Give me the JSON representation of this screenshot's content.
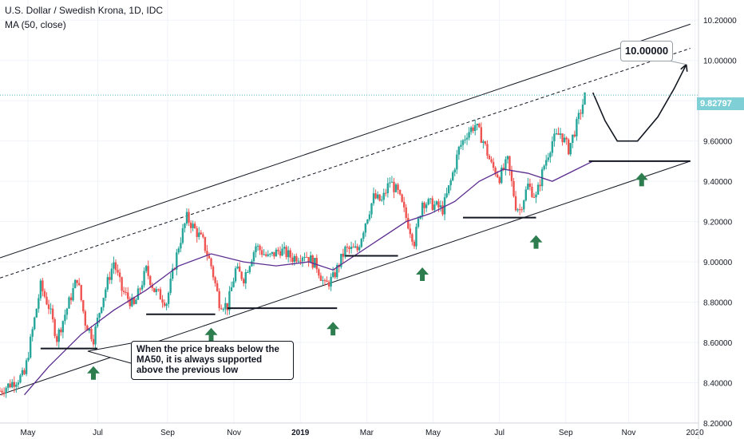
{
  "header": {
    "symbol_line": "U.S. Dollar / Swedish Krona, 1D, IDC",
    "indicator_line": "MA (50, close)"
  },
  "annotations": {
    "note": "When the price breaks below the MA50, it is always supported above the previous low",
    "target_label": "10.00000",
    "last_price": "9.82797"
  },
  "colors": {
    "up": "#26a69a",
    "down": "#ef5350",
    "ma": "#5b2c8f",
    "arrow": "#2e7d4f",
    "price_line": "#4fb4bf"
  },
  "chart_data": {
    "type": "candlestick",
    "title": "U.S. Dollar / Swedish Krona, 1D, IDC",
    "ylim": [
      8.2,
      10.3
    ],
    "y_ticks": [
      "10.20000",
      "10.00000",
      "9.80000",
      "9.60000",
      "9.40000",
      "9.20000",
      "9.00000",
      "8.80000",
      "8.60000",
      "8.40000",
      "8.20000"
    ],
    "x_ticks": [
      "May",
      "Jul",
      "Sep",
      "Nov",
      "2019",
      "Mar",
      "May",
      "Jul",
      "Sep",
      "Nov",
      "2020"
    ],
    "price_path": [
      [
        0,
        8.36
      ],
      [
        6,
        8.44
      ],
      [
        10,
        8.88
      ],
      [
        12,
        8.78
      ],
      [
        14,
        8.62
      ],
      [
        17,
        8.8
      ],
      [
        19,
        8.92
      ],
      [
        21,
        8.7
      ],
      [
        23,
        8.62
      ],
      [
        25,
        8.8
      ],
      [
        28,
        9.0
      ],
      [
        30,
        8.86
      ],
      [
        33,
        8.78
      ],
      [
        36,
        8.96
      ],
      [
        38,
        8.86
      ],
      [
        41,
        8.8
      ],
      [
        44,
        9.08
      ],
      [
        46,
        9.22
      ],
      [
        48,
        9.16
      ],
      [
        50,
        9.1
      ],
      [
        52,
        8.98
      ],
      [
        54,
        8.8
      ],
      [
        56,
        8.78
      ],
      [
        58,
        8.96
      ],
      [
        60,
        8.92
      ],
      [
        63,
        9.08
      ],
      [
        66,
        9.02
      ],
      [
        69,
        9.06
      ],
      [
        72,
        9.02
      ],
      [
        75,
        9.04
      ],
      [
        78,
        8.98
      ],
      [
        80,
        8.88
      ],
      [
        82,
        8.92
      ],
      [
        85,
        9.06
      ],
      [
        88,
        9.06
      ],
      [
        90,
        9.2
      ],
      [
        92,
        9.32
      ],
      [
        94,
        9.3
      ],
      [
        96,
        9.4
      ],
      [
        98,
        9.34
      ],
      [
        100,
        9.22
      ],
      [
        102,
        9.1
      ],
      [
        104,
        9.3
      ],
      [
        107,
        9.28
      ],
      [
        109,
        9.26
      ],
      [
        111,
        9.4
      ],
      [
        113,
        9.56
      ],
      [
        115,
        9.64
      ],
      [
        117,
        9.68
      ],
      [
        119,
        9.6
      ],
      [
        121,
        9.48
      ],
      [
        123,
        9.42
      ],
      [
        125,
        9.5
      ],
      [
        127,
        9.28
      ],
      [
        128,
        9.26
      ],
      [
        130,
        9.38
      ],
      [
        132,
        9.32
      ],
      [
        134,
        9.48
      ],
      [
        136,
        9.6
      ],
      [
        138,
        9.64
      ],
      [
        140,
        9.56
      ],
      [
        142,
        9.68
      ],
      [
        144,
        9.82
      ]
    ],
    "ma50_path": [
      [
        6,
        8.34
      ],
      [
        12,
        8.48
      ],
      [
        20,
        8.64
      ],
      [
        28,
        8.76
      ],
      [
        36,
        8.86
      ],
      [
        44,
        8.98
      ],
      [
        52,
        9.04
      ],
      [
        60,
        9.0
      ],
      [
        68,
        8.98
      ],
      [
        76,
        9.0
      ],
      [
        82,
        8.96
      ],
      [
        88,
        9.04
      ],
      [
        94,
        9.12
      ],
      [
        100,
        9.2
      ],
      [
        106,
        9.24
      ],
      [
        112,
        9.3
      ],
      [
        118,
        9.4
      ],
      [
        124,
        9.46
      ],
      [
        130,
        9.44
      ],
      [
        136,
        9.4
      ],
      [
        142,
        9.46
      ],
      [
        146,
        9.5
      ]
    ],
    "channel_upper": [
      [
        0,
        9.02
      ],
      [
        170,
        10.18
      ]
    ],
    "channel_mid": [
      [
        0,
        8.92
      ],
      [
        170,
        10.06
      ]
    ],
    "channel_lower": [
      [
        0,
        8.34
      ],
      [
        170,
        9.5
      ]
    ],
    "support_lines": [
      {
        "x1": 10,
        "x2": 24,
        "y": 8.57
      },
      {
        "x1": 36,
        "x2": 53,
        "y": 8.74
      },
      {
        "x1": 56,
        "x2": 83,
        "y": 8.77
      },
      {
        "x1": 85,
        "x2": 98,
        "y": 9.03
      },
      {
        "x1": 114,
        "x2": 132,
        "y": 9.22
      },
      {
        "x1": 145,
        "x2": 170,
        "y": 9.5
      }
    ],
    "support_arrows": [
      [
        23,
        8.53
      ],
      [
        52,
        8.72
      ],
      [
        82,
        8.75
      ],
      [
        104,
        9.02
      ],
      [
        132,
        9.18
      ],
      [
        158,
        9.49
      ]
    ],
    "projection": [
      [
        146,
        9.84
      ],
      [
        149,
        9.7
      ],
      [
        152,
        9.6
      ],
      [
        157,
        9.6
      ],
      [
        162,
        9.72
      ],
      [
        166,
        9.86
      ],
      [
        169,
        9.98
      ]
    ]
  }
}
